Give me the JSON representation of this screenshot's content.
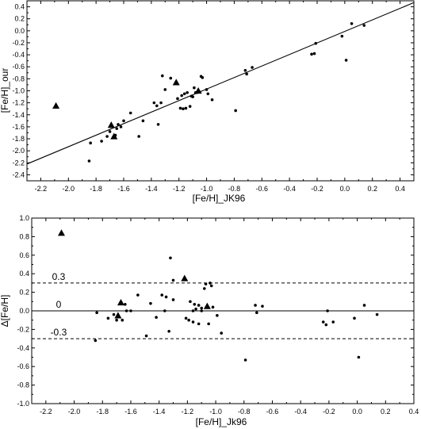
{
  "chart_data": [
    {
      "type": "scatter",
      "xlabel": "[Fe/H]_JK96",
      "ylabel": "[Fe/H]_our",
      "xlim": [
        -2.3,
        0.5
      ],
      "ylim": [
        -2.5,
        0.5
      ],
      "xticks": [
        "-2.2",
        "-2.0",
        "-1.8",
        "-1.6",
        "-1.4",
        "-1.2",
        "-1.0",
        "-0.8",
        "-0.6",
        "-0.4",
        "-0.2",
        "0.0",
        "0.2",
        "0.4"
      ],
      "yticks": [
        "-2.4",
        "-2.2",
        "-2.0",
        "-1.8",
        "-1.6",
        "-1.4",
        "-1.2",
        "-1.0",
        "-0.8",
        "-0.6",
        "-0.4",
        "-0.2",
        "0.0",
        "0.2",
        "0.4"
      ],
      "grid": false,
      "fit_line": {
        "x": [
          -2.3,
          0.5
        ],
        "y": [
          -2.22,
          0.47
        ]
      },
      "series": [
        {
          "marker": "circle",
          "x": [
            -1.85,
            -1.84,
            -1.76,
            -1.72,
            -1.7,
            -1.66,
            -1.65,
            -1.64,
            -1.62,
            -1.6,
            -1.55,
            -1.49,
            -1.46,
            -1.38,
            -1.36,
            -1.35,
            -1.33,
            -1.32,
            -1.3,
            -1.26,
            -1.21,
            -1.19,
            -1.18,
            -1.17,
            -1.16,
            -1.15,
            -1.14,
            -1.12,
            -1.11,
            -1.1,
            -1.09,
            -1.08,
            -1.07,
            -1.04,
            -1.03,
            -1.0,
            -0.99,
            -0.96,
            -0.79,
            -0.72,
            -0.71,
            -0.67,
            -0.24,
            -0.22,
            -0.21,
            -0.02,
            0.01,
            0.05,
            0.14
          ],
          "y": [
            -2.17,
            -1.87,
            -1.84,
            -1.76,
            -1.68,
            -1.74,
            -1.63,
            -1.56,
            -1.6,
            -1.5,
            -1.37,
            -1.76,
            -1.5,
            -1.2,
            -1.25,
            -1.56,
            -1.2,
            -0.75,
            -0.98,
            -0.79,
            -1.13,
            -1.29,
            -1.08,
            -1.3,
            -1.05,
            -1.29,
            -1.03,
            -1.26,
            -1.09,
            -1.1,
            -0.95,
            -1.03,
            -1.03,
            -0.76,
            -0.78,
            -0.98,
            -1.05,
            -1.15,
            -1.33,
            -0.66,
            -0.72,
            -0.61,
            -0.39,
            -0.38,
            -0.21,
            -0.09,
            -0.49,
            0.12,
            0.09
          ]
        },
        {
          "marker": "triangle",
          "x": [
            -2.09,
            -1.69,
            -1.67,
            -1.22,
            -1.06
          ],
          "y": [
            -1.25,
            -1.57,
            -1.76,
            -0.86,
            -1.0
          ]
        }
      ]
    },
    {
      "type": "scatter",
      "xlabel": "[Fe/H]_Jk96",
      "ylabel": "Δ[Fe/H]",
      "xlim": [
        -2.3,
        0.4
      ],
      "ylim": [
        -1.0,
        1.0
      ],
      "xticks": [
        "-2.2",
        "-2.0",
        "-1.8",
        "-1.6",
        "-1.4",
        "-1.2",
        "-1.0",
        "-0.8",
        "-0.6",
        "-0.4",
        "-0.2",
        "0.0",
        "0.2",
        "0.4"
      ],
      "yticks": [
        "-1.0",
        "-0.8",
        "-0.6",
        "-0.4",
        "-0.2",
        "0.0",
        "0.2",
        "0.4",
        "0.6",
        "0.8",
        "1.0"
      ],
      "grid": false,
      "reference_lines": [
        {
          "y": 0.3,
          "style": "dashed",
          "label": "0.3"
        },
        {
          "y": 0.0,
          "style": "solid",
          "label": "0"
        },
        {
          "y": -0.3,
          "style": "dashed",
          "label": "-0.3"
        }
      ],
      "series": [
        {
          "marker": "circle",
          "x": [
            -1.85,
            -1.84,
            -1.76,
            -1.72,
            -1.7,
            -1.66,
            -1.64,
            -1.63,
            -1.6,
            -1.55,
            -1.49,
            -1.46,
            -1.42,
            -1.38,
            -1.36,
            -1.35,
            -1.33,
            -1.32,
            -1.3,
            -1.3,
            -1.21,
            -1.19,
            -1.18,
            -1.16,
            -1.16,
            -1.15,
            -1.14,
            -1.12,
            -1.12,
            -1.1,
            -1.1,
            -1.08,
            -1.07,
            -1.05,
            -1.04,
            -1.03,
            -1.02,
            -0.99,
            -0.96,
            -0.79,
            -0.72,
            -0.71,
            -0.67,
            -0.24,
            -0.22,
            -0.21,
            -0.17,
            -0.02,
            0.01,
            0.05,
            0.14
          ],
          "y": [
            -0.32,
            -0.02,
            -0.08,
            -0.04,
            -0.1,
            -0.1,
            0.07,
            0.0,
            0.0,
            0.17,
            -0.27,
            0.08,
            -0.07,
            0.17,
            0.0,
            0.15,
            -0.22,
            0.57,
            0.33,
            0.12,
            -0.08,
            -0.1,
            0.1,
            -0.12,
            0.0,
            0.07,
            0.02,
            -0.14,
            0.06,
            0.0,
            0.03,
            0.24,
            0.29,
            -0.14,
            0.3,
            0.27,
            0.04,
            -0.05,
            -0.24,
            -0.53,
            0.06,
            -0.02,
            0.05,
            -0.12,
            -0.15,
            0.0,
            -0.12,
            -0.08,
            -0.5,
            0.06,
            -0.04
          ]
        },
        {
          "marker": "triangle",
          "x": [
            -2.09,
            -1.69,
            -1.67,
            -1.22,
            -1.06
          ],
          "y": [
            0.84,
            -0.05,
            0.09,
            0.35,
            0.05
          ]
        }
      ]
    }
  ]
}
